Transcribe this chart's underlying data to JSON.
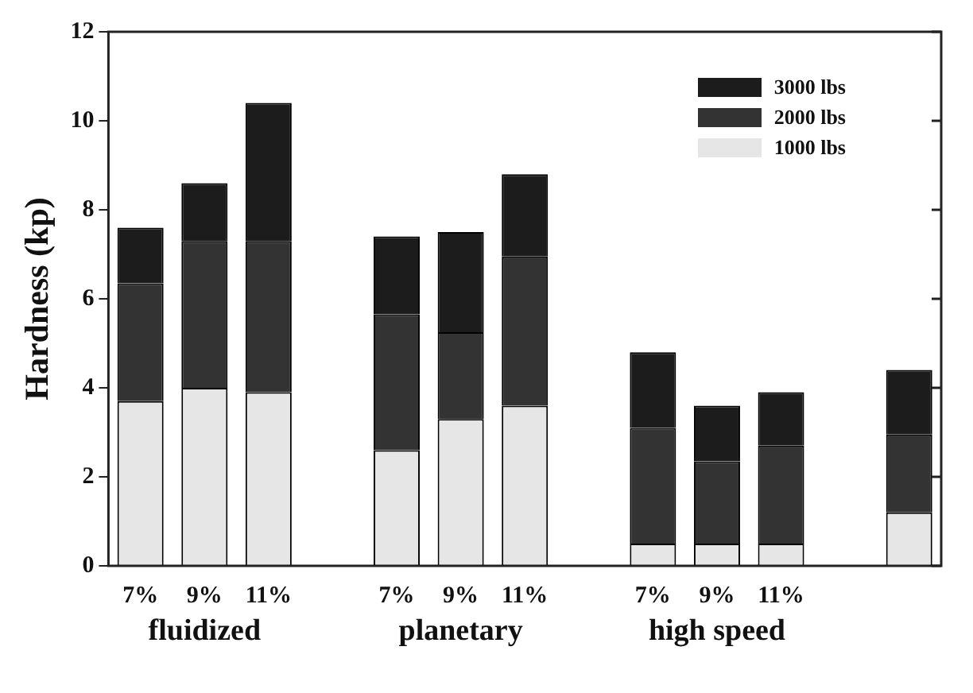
{
  "chart_data": {
    "type": "bar",
    "ylabel": "Hardness (kp)",
    "categories": [
      "7%",
      "9%",
      "11%",
      null,
      "7%",
      "9%",
      "11%",
      null,
      "7%",
      "9%",
      "11%",
      null,
      null
    ],
    "stacked": true,
    "series": [
      {
        "name": "1000 lbs",
        "color": "#e6e6e6",
        "values": [
          3.7,
          4.0,
          3.9,
          null,
          2.6,
          3.3,
          3.6,
          null,
          0.5,
          0.5,
          0.5,
          null,
          1.2
        ]
      },
      {
        "name": "2000 lbs",
        "color": "#333333",
        "values": [
          2.65,
          3.3,
          3.4,
          null,
          3.05,
          1.95,
          3.35,
          null,
          2.6,
          1.85,
          2.2,
          null,
          1.75
        ]
      },
      {
        "name": "3000 lbs",
        "color": "#1c1c1c",
        "values": [
          1.25,
          1.3,
          3.1,
          null,
          1.75,
          2.25,
          1.85,
          null,
          1.7,
          1.25,
          1.2,
          null,
          1.45
        ]
      }
    ],
    "annotations": [
      "fluidized",
      "planetary",
      "high speed"
    ],
    "ylim": [
      0,
      12
    ],
    "yticks": [
      0,
      2,
      4,
      6,
      8,
      10,
      12
    ],
    "grid": false,
    "legend": "top right"
  }
}
